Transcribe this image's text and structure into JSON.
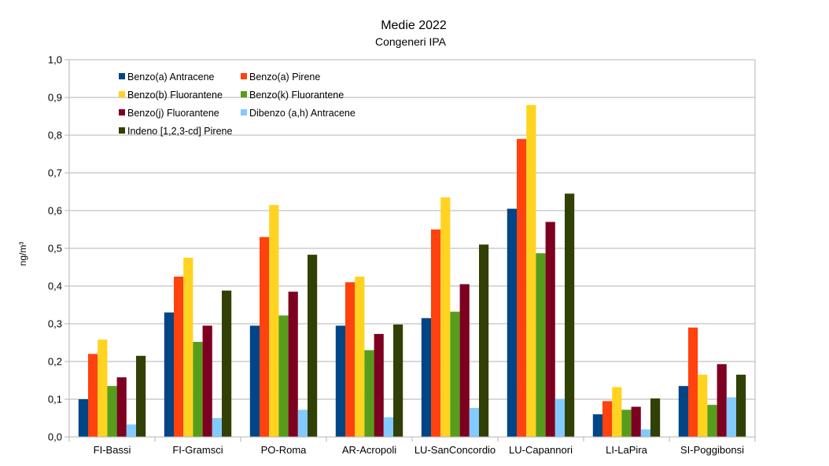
{
  "chart_data": {
    "type": "bar",
    "title": "Medie 2022",
    "subtitle": "Congeneri IPA",
    "ylabel": "ng/m³",
    "xlabel": "",
    "ylim": [
      0,
      1.0
    ],
    "yticks": [
      "0,0",
      "0,1",
      "0,2",
      "0,3",
      "0,4",
      "0,5",
      "0,6",
      "0,7",
      "0,8",
      "0,9",
      "1,0"
    ],
    "grid": true,
    "legend_position": "top-left",
    "categories": [
      "FI-Bassi",
      "FI-Gramsci",
      "PO-Roma",
      "AR-Acropoli",
      "LU-SanConcordio",
      "LU-Capannori",
      "LI-LaPira",
      "SI-Poggibonsi"
    ],
    "series": [
      {
        "name": "Benzo(a) Antracene",
        "color": "#004586",
        "values": [
          0.1,
          0.33,
          0.295,
          0.295,
          0.315,
          0.605,
          0.06,
          0.135
        ]
      },
      {
        "name": "Benzo(a) Pirene",
        "color": "#ff420e",
        "values": [
          0.22,
          0.425,
          0.53,
          0.41,
          0.55,
          0.79,
          0.095,
          0.29
        ]
      },
      {
        "name": "Benzo(b) Fluorantene",
        "color": "#ffd320",
        "values": [
          0.258,
          0.475,
          0.615,
          0.425,
          0.635,
          0.88,
          0.132,
          0.165
        ]
      },
      {
        "name": "Benzo(k) Fluorantene",
        "color": "#579d1c",
        "values": [
          0.135,
          0.252,
          0.322,
          0.23,
          0.332,
          0.487,
          0.072,
          0.085
        ]
      },
      {
        "name": "Benzo(j) Fluorantene",
        "color": "#7e0021",
        "values": [
          0.158,
          0.295,
          0.385,
          0.273,
          0.405,
          0.57,
          0.08,
          0.193
        ]
      },
      {
        "name": "Dibenzo (a,h) Antracene",
        "color": "#83caff",
        "values": [
          0.033,
          0.05,
          0.072,
          0.052,
          0.077,
          0.1,
          0.02,
          0.105
        ]
      },
      {
        "name": "Indeno [1,2,3-cd] Pirene",
        "color": "#314004",
        "values": [
          0.215,
          0.388,
          0.483,
          0.298,
          0.51,
          0.645,
          0.102,
          0.165
        ]
      }
    ]
  }
}
